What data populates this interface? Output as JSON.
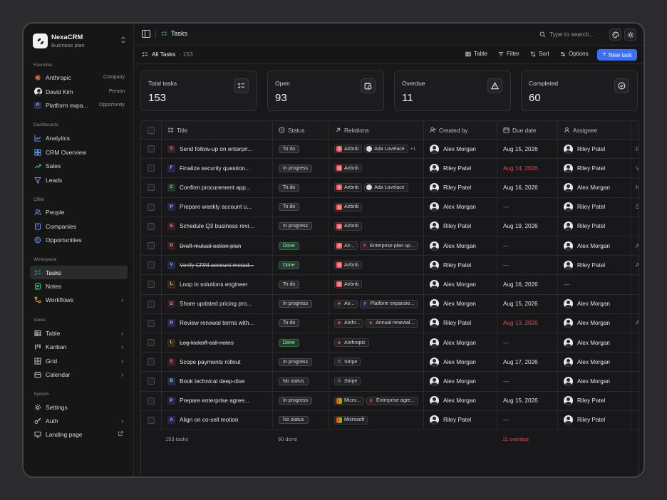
{
  "brand": {
    "name": "NexaCRM",
    "plan": "Business plan"
  },
  "sidebar": {
    "favorites_label": "Favorites",
    "favorites": [
      {
        "label": "Anthropic",
        "tag": "Company"
      },
      {
        "label": "David Kim",
        "tag": "Person"
      },
      {
        "label": "Platform expa...",
        "tag": "Opportunity"
      }
    ],
    "dashboards_label": "Dashboards",
    "dashboards": [
      "Analytics",
      "CRM Overview",
      "Sales",
      "Leads"
    ],
    "crm_label": "CRM",
    "crm": [
      "People",
      "Companies",
      "Opportunities"
    ],
    "workspace_label": "Workspace",
    "workspace": [
      "Tasks",
      "Notes",
      "Workflows"
    ],
    "views_label": "Views",
    "views": [
      "Table",
      "Kanban",
      "Grid",
      "Calendar"
    ],
    "system_label": "System",
    "system": [
      "Settings",
      "Auth",
      "Landing page"
    ]
  },
  "topbar": {
    "crumb": "Tasks",
    "search_placeholder": "Type to search..."
  },
  "toolbar": {
    "title": "All Tasks",
    "count": "· 153",
    "table": "Table",
    "filter": "Filter",
    "sort": "Sort",
    "options": "Options",
    "new_task": "New task"
  },
  "stats": [
    {
      "label": "Total tasks",
      "value": "153"
    },
    {
      "label": "Open",
      "value": "93"
    },
    {
      "label": "Overdue",
      "value": "11"
    },
    {
      "label": "Completed",
      "value": "60"
    }
  ],
  "columns": {
    "title": "Title",
    "status": "Status",
    "relations": "Relations",
    "created_by": "Created by",
    "due_date": "Due date",
    "assignee": "Assignee"
  },
  "rows": [
    {
      "letter": "S",
      "title": "Send follow-up on enterpri...",
      "status": "To do",
      "relations": [
        "Airbnb",
        "Ada Lovelace"
      ],
      "more": "+1",
      "created_by": "Alex Morgan",
      "due": "Aug 15, 2026",
      "assignee": "Riley Patel"
    },
    {
      "letter": "F",
      "title": "Finalize security question...",
      "status": "In progress",
      "relations": [
        "Airbnb"
      ],
      "more": "",
      "created_by": "Riley Patel",
      "due": "Aug 14, 2026",
      "assignee": "Riley Patel"
    },
    {
      "letter": "C",
      "title": "Confirm procurement app...",
      "status": "To do",
      "relations": [
        "Airbnb",
        "Ada Lovelace"
      ],
      "more": "",
      "created_by": "Riley Patel",
      "due": "Aug 16, 2026",
      "assignee": "Alex Morgan"
    },
    {
      "letter": "P",
      "title": "Prepare weekly account u...",
      "status": "To do",
      "relations": [
        "Airbnb"
      ],
      "more": "",
      "created_by": "Alex Morgan",
      "due": "—",
      "assignee": "Riley Patel"
    },
    {
      "letter": "S",
      "title": "Schedule Q3 business revi...",
      "status": "In progress",
      "relations": [
        "Airbnb"
      ],
      "more": "",
      "created_by": "Riley Patel",
      "due": "Aug 19, 2026",
      "assignee": "Riley Patel"
    },
    {
      "letter": "D",
      "title": "Draft mutual action plan",
      "status": "Done",
      "relations": [
        "Air...",
        "Enterprise plan up..."
      ],
      "more": "",
      "created_by": "Alex Morgan",
      "due": "—",
      "assignee": "Alex Morgan"
    },
    {
      "letter": "V",
      "title": "Verify CRM account metad...",
      "status": "Done",
      "relations": [
        "Airbnb"
      ],
      "more": "",
      "created_by": "Riley Patel",
      "due": "—",
      "assignee": "Riley Patel"
    },
    {
      "letter": "L",
      "title": "Loop in solutions engineer",
      "status": "To do",
      "relations": [
        "Airbnb"
      ],
      "more": "",
      "created_by": "Alex Morgan",
      "due": "Aug 16, 2026",
      "assignee": "—"
    },
    {
      "letter": "S",
      "title": "Share updated pricing pro...",
      "status": "In progress",
      "relations": [
        "An...",
        "Platform expansio..."
      ],
      "more": "",
      "created_by": "Alex Morgan",
      "due": "Aug 15, 2026",
      "assignee": "Alex Morgan"
    },
    {
      "letter": "R",
      "title": "Review renewal terms with...",
      "status": "To do",
      "relations": [
        "Anthr...",
        "Annual renewal..."
      ],
      "more": "",
      "created_by": "Riley Patel",
      "due": "Aug 13, 2026",
      "assignee": "Alex Morgan"
    },
    {
      "letter": "L",
      "title": "Log kickoff call notes",
      "status": "Done",
      "relations": [
        "Anthropic"
      ],
      "more": "",
      "created_by": "Alex Morgan",
      "due": "—",
      "assignee": "Alex Morgan"
    },
    {
      "letter": "S",
      "title": "Scope payments rollout",
      "status": "In progress",
      "relations": [
        "Stripe"
      ],
      "more": "",
      "created_by": "Alex Morgan",
      "due": "Aug 17, 2026",
      "assignee": "Alex Morgan"
    },
    {
      "letter": "B",
      "title": "Book technical deep-dive",
      "status": "No status",
      "relations": [
        "Stripe"
      ],
      "more": "",
      "created_by": "Alex Morgan",
      "due": "—",
      "assignee": "Alex Morgan"
    },
    {
      "letter": "P",
      "title": "Prepare enterprise agree...",
      "status": "In progress",
      "relations": [
        "Micro...",
        "Enterprise agre..."
      ],
      "more": "",
      "created_by": "Alex Morgan",
      "due": "Aug 15, 2026",
      "assignee": "Riley Patel"
    },
    {
      "letter": "A",
      "title": "Align on co-sell motion",
      "status": "No status",
      "relations": [
        "Microsoft"
      ],
      "more": "",
      "created_by": "Riley Patel",
      "due": "—",
      "assignee": "Riley Patel"
    }
  ],
  "extra_col": [
    "F",
    "V",
    "N",
    "S",
    "",
    "A",
    "A",
    "",
    "",
    "A",
    "",
    "",
    "",
    "",
    ""
  ],
  "footer": {
    "tasks": "153 tasks",
    "done": "60 done",
    "overdue": "11 overdue"
  },
  "colors": {
    "accent": "#3b6ff5",
    "overdue": "#e5484d",
    "done_pill": "#1f3d2a"
  }
}
